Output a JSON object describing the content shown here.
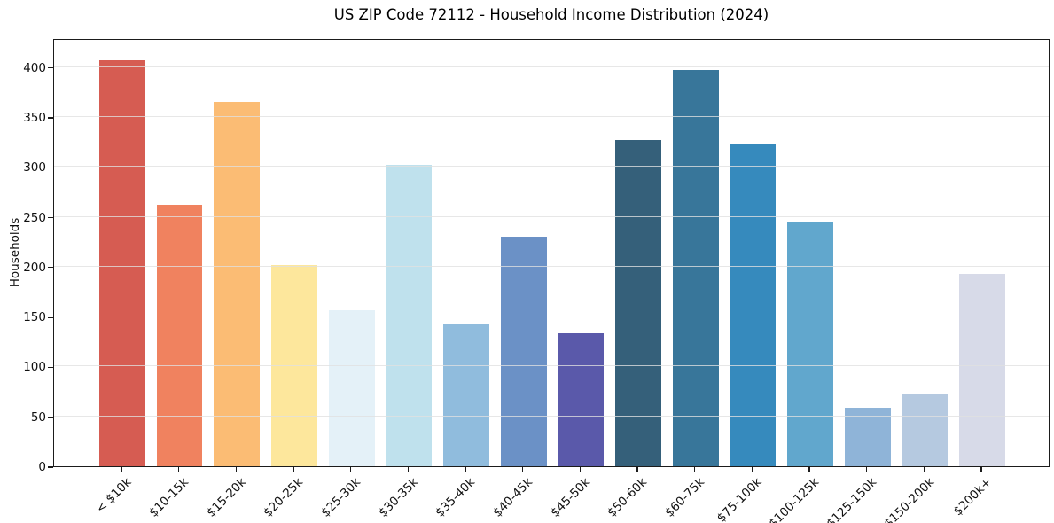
{
  "title": "US ZIP Code 72112 - Household Income Distribution (2024)",
  "chart_data": {
    "type": "bar",
    "title": "US ZIP Code 72112 - Household Income Distribution (2024)",
    "xlabel": "",
    "ylabel": "Households",
    "categories": [
      "< $10k",
      "$10-15k",
      "$15-20k",
      "$20-25k",
      "$25-30k",
      "$30-35k",
      "$35-40k",
      "$40-45k",
      "$45-50k",
      "$50-60k",
      "$60-75k",
      "$75-100k",
      "$100-125k",
      "$125-150k",
      "$150-200k",
      "$200k+"
    ],
    "values": [
      407,
      262,
      365,
      202,
      156,
      302,
      142,
      230,
      133,
      327,
      397,
      322,
      245,
      59,
      73,
      193
    ],
    "bar_colors": [
      "#d65c52",
      "#f0825f",
      "#fbbc74",
      "#fde79c",
      "#e4f1f8",
      "#bfe1ed",
      "#90bcdd",
      "#6b91c6",
      "#5a59aa",
      "#35607a",
      "#38769a",
      "#368abd",
      "#61a7cd",
      "#8fb4d8",
      "#b5c9e0",
      "#d7dae8"
    ],
    "ylim": [
      0,
      429
    ],
    "yticks": [
      0,
      50,
      100,
      150,
      200,
      250,
      300,
      350,
      400
    ],
    "grid": "horizontal-only",
    "legend": "none",
    "bar_width_fraction": 0.8,
    "x_axis_padding_units": 1.19
  }
}
